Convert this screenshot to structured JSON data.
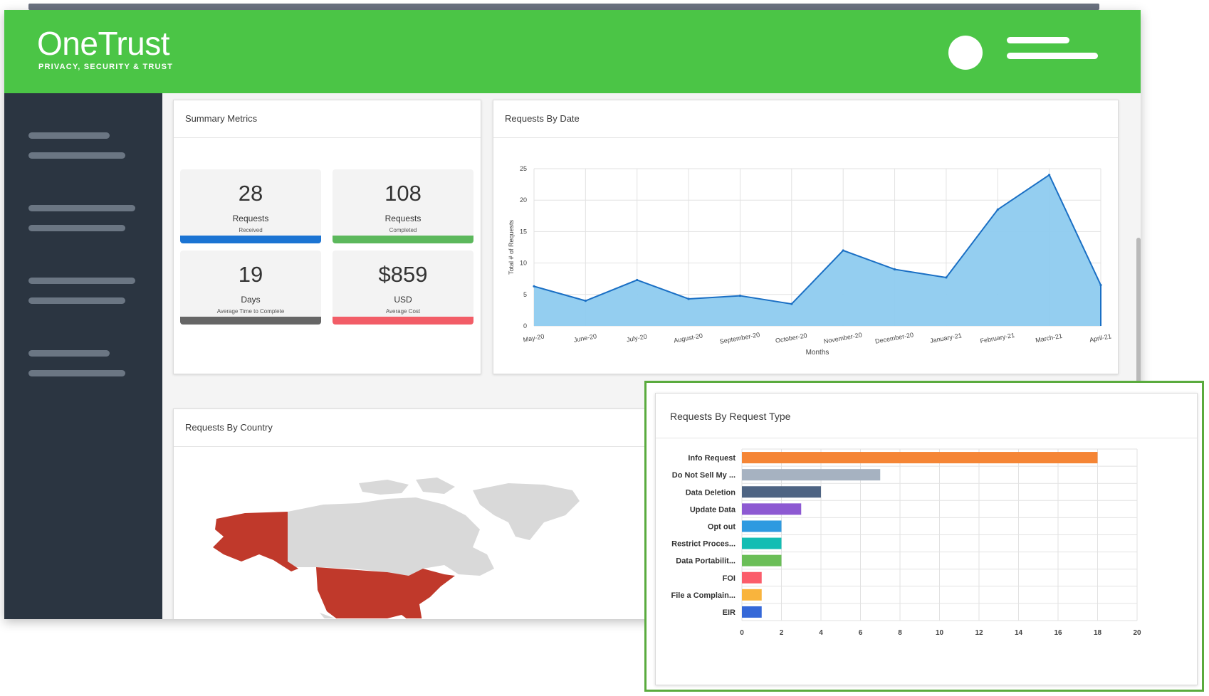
{
  "app": {
    "brand_name": "OneTrust",
    "brand_tagline": "PRIVACY, SECURITY & TRUST"
  },
  "colors": {
    "header": "#4bc546",
    "sidebar": "#2b3541",
    "highlight_border": "#5aab3e"
  },
  "icons": {
    "user": "avatar-circle",
    "menu": "hamburger-lines"
  },
  "summary": {
    "title": "Summary Metrics",
    "metrics": [
      {
        "value": "28",
        "label": "Requests",
        "sublabel": "Received",
        "color": "#1b74d3"
      },
      {
        "value": "108",
        "label": "Requests",
        "sublabel": "Completed",
        "color": "#5cb85c"
      },
      {
        "value": "19",
        "label": "Days",
        "sublabel": "Average Time to Complete",
        "color": "#666666"
      },
      {
        "value": "$859",
        "label": "USD",
        "sublabel": "Average Cost",
        "color": "#f25d67"
      }
    ]
  },
  "by_date": {
    "title": "Requests By Date"
  },
  "by_country": {
    "title": "Requests By Country",
    "highlighted_countries": [
      "United States",
      "Alaska (US)"
    ],
    "highlight_color": "#c0392b"
  },
  "by_type": {
    "title": "Requests By Request Type"
  },
  "chart_data": [
    {
      "type": "area",
      "title": "Requests By Date",
      "xlabel": "Months",
      "ylabel": "Total # of Requests",
      "categories": [
        "May-20",
        "June-20",
        "July-20",
        "August-20",
        "September-20",
        "October-20",
        "November-20",
        "December-20",
        "January-21",
        "February-21",
        "March-21",
        "April-21"
      ],
      "values": [
        6.3,
        4,
        7.3,
        4.3,
        4.8,
        3.5,
        12,
        9,
        7.7,
        18.5,
        24,
        6.5
      ],
      "yticks": [
        "0",
        "5",
        "10",
        "15",
        "20",
        "25"
      ],
      "ylim": [
        0,
        25
      ],
      "grid": true,
      "color": "#8ecbef",
      "line_color": "#1a6fc4"
    },
    {
      "type": "bar",
      "orientation": "horizontal",
      "title": "Requests By Request Type",
      "categories": [
        "Info Request",
        "Do Not Sell My ...",
        "Data Deletion",
        "Update Data",
        "Opt out",
        "Restrict Proces...",
        "Data Portabilit...",
        "FOI",
        "File a Complain...",
        "EIR"
      ],
      "values": [
        18,
        7,
        4,
        3,
        2,
        2,
        2,
        1,
        1,
        1
      ],
      "colors": [
        "#f58535",
        "#a6b2c1",
        "#4e6483",
        "#8d59d2",
        "#2e9ae0",
        "#13bdb3",
        "#6abe57",
        "#fb5d6b",
        "#f9b43d",
        "#3568d8"
      ],
      "xticks": [
        "0",
        "2",
        "4",
        "6",
        "8",
        "10",
        "12",
        "14",
        "16",
        "18",
        "20"
      ],
      "xlim": [
        0,
        20
      ],
      "grid": true
    }
  ]
}
